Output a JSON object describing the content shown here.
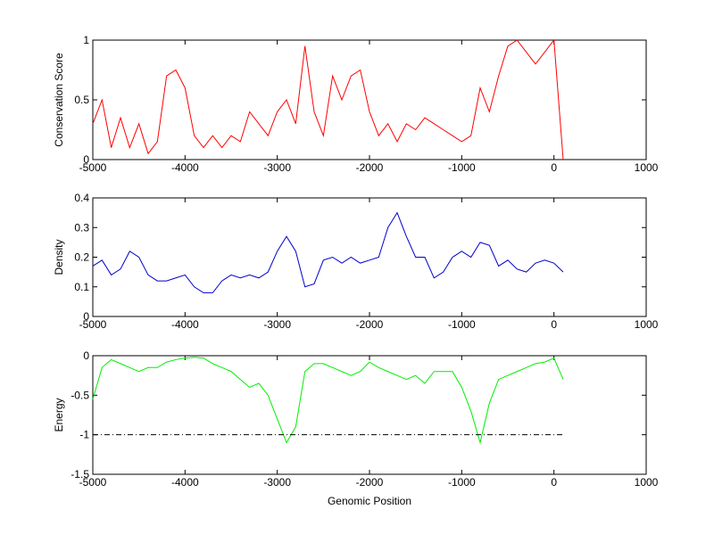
{
  "chart_data": [
    {
      "type": "line",
      "ylabel": "Conservation Score",
      "xlim": [
        -5000,
        1000
      ],
      "xticks": [
        -5000,
        -4000,
        -3000,
        -2000,
        -1000,
        0,
        1000
      ],
      "ylim": [
        0,
        1
      ],
      "yticks": [
        0,
        0.5,
        1
      ],
      "grid": false,
      "series": [
        {
          "color": "#ff0000",
          "x": [
            -5000,
            -4900,
            -4800,
            -4700,
            -4600,
            -4500,
            -4400,
            -4300,
            -4200,
            -4100,
            -4000,
            -3900,
            -3800,
            -3700,
            -3600,
            -3500,
            -3400,
            -3300,
            -3200,
            -3100,
            -3000,
            -2900,
            -2800,
            -2700,
            -2600,
            -2500,
            -2400,
            -2300,
            -2200,
            -2100,
            -2000,
            -1900,
            -1800,
            -1700,
            -1600,
            -1500,
            -1400,
            -1300,
            -1200,
            -1100,
            -1000,
            -900,
            -800,
            -700,
            -600,
            -500,
            -400,
            -300,
            -200,
            -100,
            0,
            100
          ],
          "values": [
            0.3,
            0.5,
            0.1,
            0.35,
            0.1,
            0.3,
            0.05,
            0.15,
            0.7,
            0.75,
            0.6,
            0.2,
            0.1,
            0.2,
            0.1,
            0.2,
            0.15,
            0.4,
            0.3,
            0.2,
            0.4,
            0.5,
            0.3,
            0.95,
            0.4,
            0.2,
            0.7,
            0.5,
            0.7,
            0.75,
            0.4,
            0.2,
            0.3,
            0.15,
            0.3,
            0.25,
            0.35,
            0.3,
            0.25,
            0.2,
            0.15,
            0.2,
            0.6,
            0.4,
            0.7,
            0.95,
            1,
            0.9,
            0.8,
            0.9,
            1,
            0
          ]
        }
      ]
    },
    {
      "type": "line",
      "ylabel": "Density",
      "xlim": [
        -5000,
        1000
      ],
      "xticks": [
        -5000,
        -4000,
        -3000,
        -2000,
        -1000,
        0,
        1000
      ],
      "ylim": [
        0,
        0.4
      ],
      "yticks": [
        0,
        0.1,
        0.2,
        0.3,
        0.4
      ],
      "grid": false,
      "series": [
        {
          "color": "#0000cc",
          "x": [
            -5000,
            -4900,
            -4800,
            -4700,
            -4600,
            -4500,
            -4400,
            -4300,
            -4200,
            -4100,
            -4000,
            -3900,
            -3800,
            -3700,
            -3600,
            -3500,
            -3400,
            -3300,
            -3200,
            -3100,
            -3000,
            -2900,
            -2800,
            -2700,
            -2600,
            -2500,
            -2400,
            -2300,
            -2200,
            -2100,
            -2000,
            -1900,
            -1800,
            -1700,
            -1600,
            -1500,
            -1400,
            -1300,
            -1200,
            -1100,
            -1000,
            -900,
            -800,
            -700,
            -600,
            -500,
            -400,
            -300,
            -200,
            -100,
            0,
            100
          ],
          "values": [
            0.17,
            0.19,
            0.14,
            0.16,
            0.22,
            0.2,
            0.14,
            0.12,
            0.12,
            0.13,
            0.14,
            0.1,
            0.08,
            0.08,
            0.12,
            0.14,
            0.13,
            0.14,
            0.13,
            0.15,
            0.22,
            0.27,
            0.22,
            0.1,
            0.11,
            0.19,
            0.2,
            0.18,
            0.2,
            0.18,
            0.19,
            0.2,
            0.3,
            0.35,
            0.27,
            0.2,
            0.2,
            0.13,
            0.15,
            0.2,
            0.22,
            0.2,
            0.25,
            0.24,
            0.17,
            0.19,
            0.16,
            0.15,
            0.18,
            0.19,
            0.18,
            0.15
          ]
        }
      ]
    },
    {
      "type": "line",
      "ylabel": "Energy",
      "xlabel": "Genomic Position",
      "xlim": [
        -5000,
        1000
      ],
      "xticks": [
        -5000,
        -4000,
        -3000,
        -2000,
        -1000,
        0,
        1000
      ],
      "ylim": [
        -1.5,
        0
      ],
      "yticks": [
        -1.5,
        -1,
        -0.5,
        0
      ],
      "grid": false,
      "series": [
        {
          "color": "#00ee00",
          "x": [
            -5000,
            -4900,
            -4800,
            -4700,
            -4600,
            -4500,
            -4400,
            -4300,
            -4200,
            -4100,
            -4000,
            -3900,
            -3800,
            -3700,
            -3600,
            -3500,
            -3400,
            -3300,
            -3200,
            -3100,
            -3000,
            -2900,
            -2800,
            -2700,
            -2600,
            -2500,
            -2400,
            -2300,
            -2200,
            -2100,
            -2000,
            -1900,
            -1800,
            -1700,
            -1600,
            -1500,
            -1400,
            -1300,
            -1200,
            -1100,
            -1000,
            -900,
            -800,
            -700,
            -600,
            -500,
            -400,
            -300,
            -200,
            -100,
            0,
            100
          ],
          "values": [
            -0.55,
            -0.15,
            -0.05,
            -0.1,
            -0.15,
            -0.2,
            -0.15,
            -0.15,
            -0.08,
            -0.05,
            -0.03,
            -0.02,
            -0.03,
            -0.1,
            -0.15,
            -0.2,
            -0.3,
            -0.4,
            -0.35,
            -0.5,
            -0.8,
            -1.1,
            -0.9,
            -0.2,
            -0.1,
            -0.1,
            -0.15,
            -0.2,
            -0.25,
            -0.2,
            -0.08,
            -0.15,
            -0.2,
            -0.25,
            -0.3,
            -0.25,
            -0.35,
            -0.2,
            -0.2,
            -0.2,
            -0.4,
            -0.7,
            -1.1,
            -0.6,
            -0.3,
            -0.25,
            -0.2,
            -0.15,
            -0.1,
            -0.08,
            -0.03,
            -0.3
          ]
        },
        {
          "color": "#000000",
          "linestyle": "dashdot",
          "x": [
            -5000,
            100
          ],
          "values": [
            -1,
            -1
          ]
        }
      ]
    }
  ]
}
